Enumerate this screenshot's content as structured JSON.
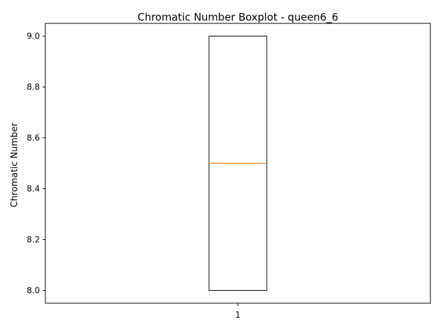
{
  "chart_data": {
    "type": "box",
    "title": "Chromatic Number Boxplot - queen6_6",
    "xlabel": "",
    "ylabel": "Chromatic Number",
    "categories": [
      "1"
    ],
    "boxes": [
      {
        "category": "1",
        "whisker_low": 8.0,
        "q1": 8.0,
        "median": 8.5,
        "q3": 9.0,
        "whisker_high": 9.0
      }
    ],
    "ylim": [
      7.95,
      9.05
    ],
    "yticks": [
      8.0,
      8.2,
      8.4,
      8.6,
      8.8,
      9.0
    ],
    "ytick_labels": [
      "8.0",
      "8.2",
      "8.4",
      "8.6",
      "8.8",
      "9.0"
    ],
    "grid": false,
    "colors": {
      "box": "#000000",
      "median": "#ff7f0e"
    }
  }
}
